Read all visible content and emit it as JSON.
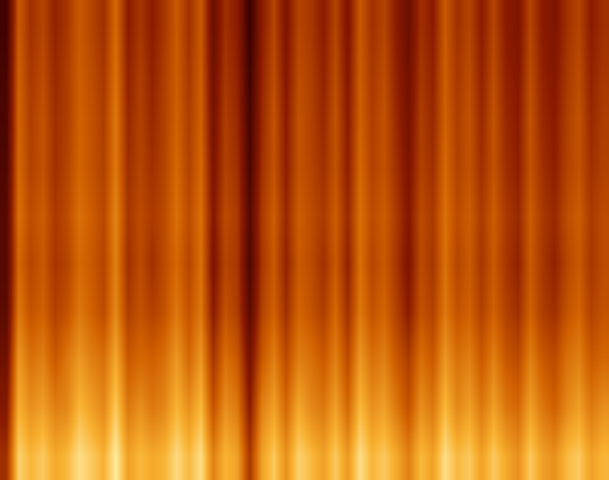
{
  "chart_data": {
    "type": "heatmap",
    "tick_labels": false,
    "zlim": [
      20,
      100
    ],
    "cells": [
      [
        50,
        92,
        85,
        90,
        82,
        86,
        95,
        90,
        84,
        98,
        80,
        86,
        82,
        85,
        94,
        86,
        95,
        72,
        85,
        80,
        52,
        80,
        90,
        76,
        92,
        86,
        80,
        90,
        78,
        95,
        85,
        90,
        82,
        72,
        86,
        80,
        95,
        86,
        90,
        80,
        90,
        82,
        76,
        90,
        80,
        76,
        86,
        90,
        80,
        85
      ],
      [
        42,
        84,
        76,
        80,
        72,
        74,
        86,
        80,
        74,
        90,
        70,
        76,
        70,
        74,
        85,
        76,
        86,
        60,
        76,
        70,
        44,
        72,
        80,
        66,
        82,
        74,
        70,
        80,
        66,
        86,
        76,
        80,
        70,
        60,
        76,
        70,
        86,
        74,
        80,
        70,
        80,
        70,
        66,
        80,
        70,
        64,
        74,
        80,
        70,
        76
      ],
      [
        36,
        78,
        68,
        72,
        62,
        70,
        78,
        72,
        68,
        82,
        62,
        66,
        64,
        68,
        78,
        66,
        78,
        52,
        68,
        62,
        38,
        62,
        72,
        58,
        72,
        68,
        62,
        72,
        58,
        78,
        68,
        72,
        62,
        54,
        68,
        62,
        78,
        68,
        72,
        62,
        72,
        62,
        58,
        72,
        62,
        58,
        68,
        72,
        62,
        66
      ],
      [
        30,
        70,
        60,
        64,
        55,
        60,
        70,
        64,
        58,
        74,
        54,
        60,
        55,
        60,
        70,
        60,
        70,
        44,
        60,
        54,
        30,
        55,
        64,
        50,
        65,
        60,
        54,
        66,
        50,
        70,
        60,
        65,
        55,
        44,
        60,
        55,
        70,
        60,
        64,
        55,
        64,
        55,
        50,
        64,
        54,
        50,
        60,
        65,
        55,
        60
      ],
      [
        28,
        66,
        56,
        62,
        52,
        56,
        66,
        62,
        56,
        72,
        50,
        58,
        50,
        58,
        66,
        56,
        68,
        40,
        56,
        52,
        26,
        52,
        62,
        46,
        62,
        58,
        50,
        62,
        46,
        68,
        56,
        62,
        52,
        40,
        58,
        52,
        68,
        56,
        62,
        52,
        62,
        52,
        46,
        62,
        52,
        46,
        56,
        62,
        52,
        58
      ],
      [
        28,
        68,
        58,
        63,
        53,
        58,
        68,
        63,
        57,
        73,
        52,
        58,
        53,
        58,
        68,
        58,
        68,
        42,
        58,
        53,
        28,
        53,
        63,
        48,
        63,
        58,
        53,
        63,
        48,
        68,
        58,
        63,
        53,
        42,
        58,
        53,
        68,
        58,
        63,
        53,
        63,
        53,
        48,
        63,
        53,
        48,
        58,
        63,
        53,
        58
      ],
      [
        26,
        66,
        55,
        60,
        50,
        56,
        65,
        60,
        55,
        70,
        50,
        56,
        50,
        56,
        66,
        55,
        66,
        40,
        55,
        50,
        25,
        50,
        60,
        45,
        60,
        56,
        50,
        60,
        45,
        66,
        55,
        60,
        50,
        40,
        55,
        50,
        66,
        55,
        60,
        50,
        60,
        50,
        45,
        60,
        50,
        45,
        55,
        60,
        50,
        55
      ],
      [
        25,
        65,
        54,
        60,
        50,
        54,
        64,
        60,
        54,
        70,
        48,
        55,
        48,
        55,
        64,
        54,
        64,
        38,
        54,
        48,
        24,
        48,
        60,
        44,
        60,
        55,
        48,
        60,
        44,
        64,
        54,
        60,
        48,
        38,
        54,
        48,
        64,
        54,
        60,
        48,
        60,
        48,
        44,
        60,
        48,
        44,
        54,
        60,
        48,
        54
      ],
      [
        24,
        64,
        52,
        58,
        48,
        54,
        63,
        58,
        52,
        68,
        46,
        54,
        46,
        54,
        63,
        52,
        63,
        36,
        52,
        46,
        22,
        46,
        58,
        42,
        58,
        54,
        46,
        58,
        42,
        63,
        52,
        58,
        46,
        36,
        52,
        46,
        63,
        52,
        58,
        46,
        58,
        46,
        42,
        58,
        46,
        42,
        52,
        58,
        46,
        52
      ],
      [
        22,
        62,
        50,
        56,
        46,
        52,
        62,
        56,
        50,
        66,
        44,
        52,
        44,
        52,
        62,
        50,
        62,
        34,
        50,
        44,
        20,
        44,
        56,
        40,
        56,
        52,
        44,
        56,
        40,
        62,
        50,
        56,
        44,
        34,
        50,
        44,
        62,
        50,
        56,
        44,
        56,
        44,
        40,
        56,
        44,
        40,
        50,
        56,
        44,
        50
      ]
    ]
  }
}
